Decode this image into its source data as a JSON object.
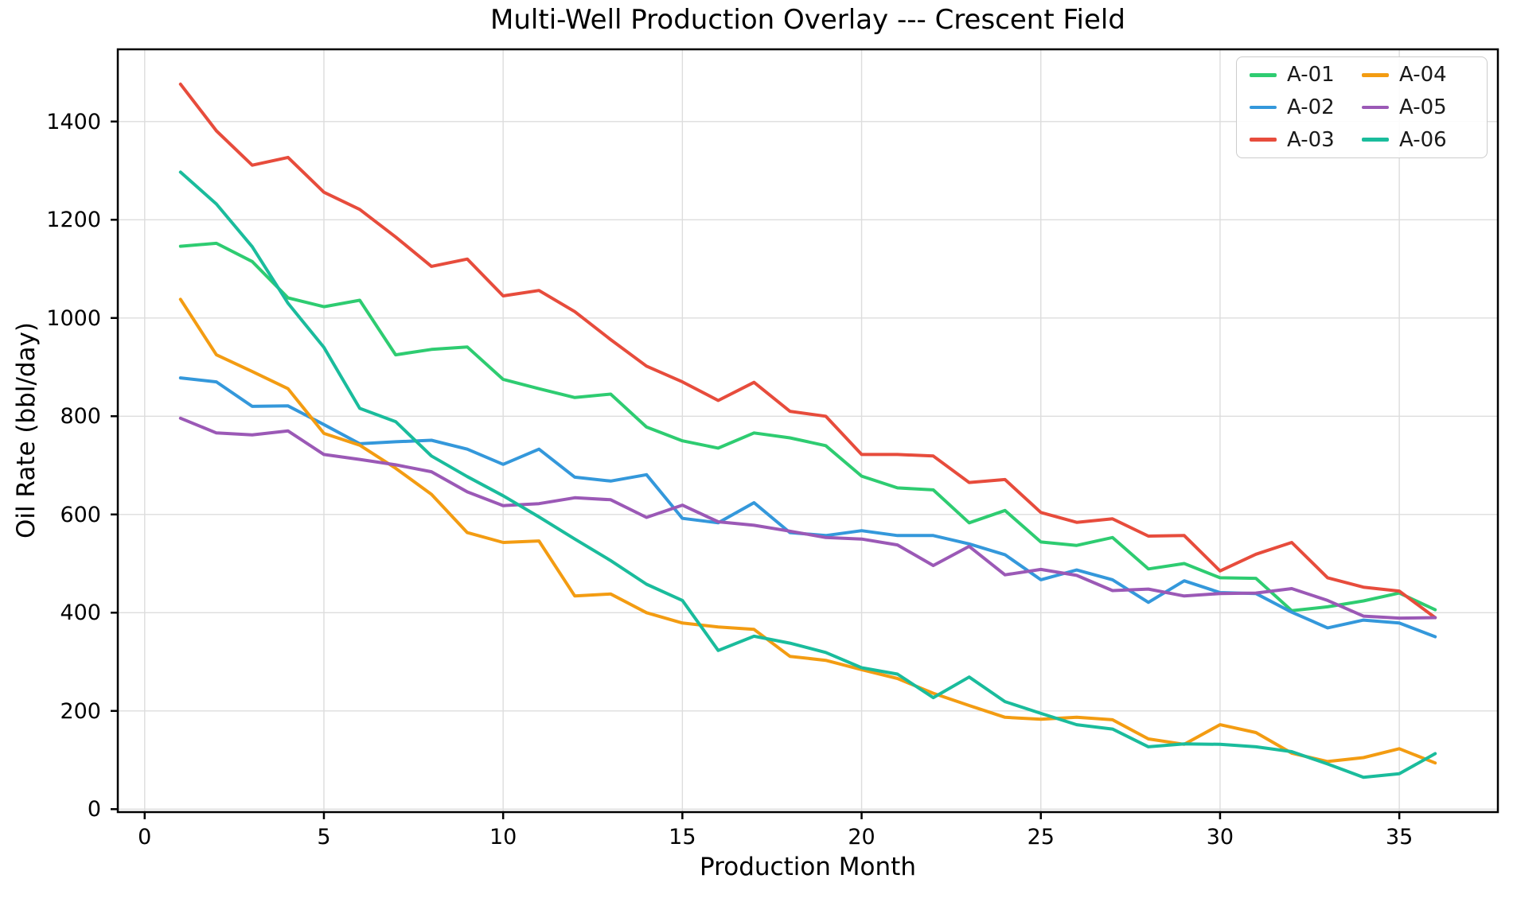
{
  "chart_data": {
    "type": "line",
    "title": "Multi-Well Production Overlay --- Crescent Field",
    "xlabel": "Production Month",
    "ylabel": "Oil Rate (bbl/day)",
    "x": [
      1,
      2,
      3,
      4,
      5,
      6,
      7,
      8,
      9,
      10,
      11,
      12,
      13,
      14,
      15,
      16,
      17,
      18,
      19,
      20,
      21,
      22,
      23,
      24,
      25,
      26,
      27,
      28,
      29,
      30,
      31,
      32,
      33,
      34,
      35,
      36
    ],
    "series": [
      {
        "name": "A-01",
        "color": "#2ecc71",
        "values": [
          1146,
          1152,
          1115,
          1041,
          1023,
          1036,
          925,
          936,
          941,
          875,
          856,
          838,
          845,
          778,
          750,
          735,
          766,
          756,
          740,
          678,
          654,
          650,
          583,
          608,
          544,
          537,
          553,
          489,
          500,
          471,
          470,
          404,
          412,
          424,
          440,
          406
        ]
      },
      {
        "name": "A-02",
        "color": "#3498db",
        "values": [
          878,
          870,
          820,
          821,
          783,
          744,
          748,
          751,
          733,
          702,
          733,
          676,
          668,
          681,
          592,
          583,
          624,
          563,
          557,
          567,
          557,
          557,
          540,
          518,
          467,
          487,
          467,
          421,
          465,
          441,
          439,
          401,
          369,
          385,
          379,
          351
        ]
      },
      {
        "name": "A-03",
        "color": "#e74c3c",
        "values": [
          1476,
          1381,
          1311,
          1327,
          1256,
          1221,
          1165,
          1105,
          1120,
          1045,
          1056,
          1013,
          956,
          902,
          870,
          832,
          869,
          810,
          800,
          722,
          722,
          719,
          665,
          671,
          604,
          584,
          591,
          556,
          557,
          485,
          519,
          543,
          471,
          452,
          444,
          390
        ]
      },
      {
        "name": "A-04",
        "color": "#f39c12",
        "values": [
          1038,
          925,
          891,
          856,
          765,
          741,
          694,
          641,
          563,
          543,
          546,
          434,
          438,
          400,
          379,
          371,
          366,
          311,
          303,
          284,
          266,
          236,
          211,
          187,
          183,
          187,
          182,
          143,
          132,
          172,
          156,
          114,
          97,
          105,
          123,
          94
        ]
      },
      {
        "name": "A-05",
        "color": "#9b59b6",
        "values": [
          796,
          766,
          762,
          770,
          722,
          712,
          701,
          687,
          646,
          618,
          622,
          634,
          630,
          594,
          619,
          585,
          578,
          566,
          553,
          550,
          538,
          496,
          535,
          477,
          488,
          476,
          445,
          448,
          434,
          439,
          440,
          449,
          425,
          393,
          389,
          390
        ]
      },
      {
        "name": "A-06",
        "color": "#1abc9c",
        "values": [
          1297,
          1232,
          1145,
          1030,
          940,
          816,
          789,
          719,
          677,
          638,
          595,
          550,
          506,
          458,
          425,
          323,
          352,
          338,
          319,
          288,
          275,
          227,
          269,
          219,
          195,
          172,
          163,
          127,
          133,
          132,
          127,
          117,
          92,
          65,
          72,
          113
        ]
      }
    ],
    "xlim": [
      -0.75,
      37.75
    ],
    "ylim": [
      -6,
      1547
    ],
    "xticks": [
      0,
      5,
      10,
      15,
      20,
      25,
      30,
      35
    ],
    "yticks": [
      0,
      200,
      400,
      600,
      800,
      1000,
      1200,
      1400
    ],
    "grid": true,
    "grid_color": "#dddddd",
    "frame_color": "#000000",
    "legend_position": "upper right",
    "legend_columns": 2,
    "legend_order": [
      "A-01",
      "A-02",
      "A-03",
      "A-04",
      "A-05",
      "A-06"
    ]
  }
}
